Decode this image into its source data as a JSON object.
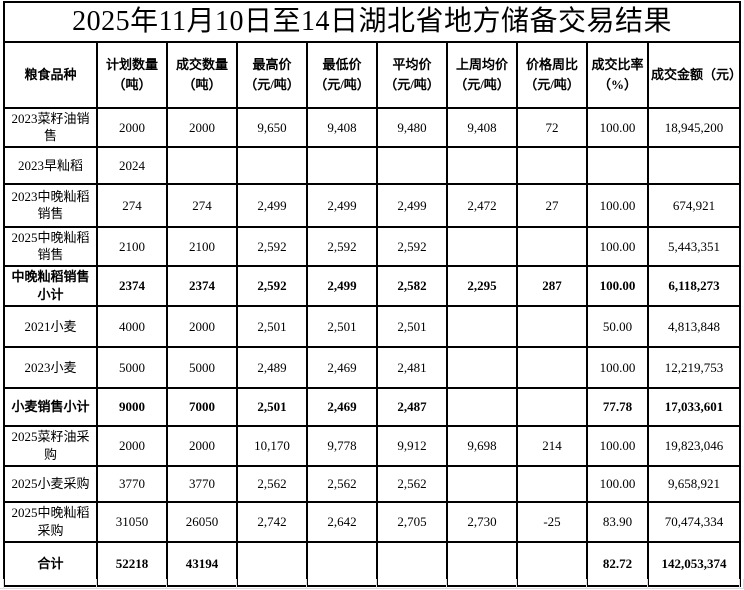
{
  "title": "2025年11月10日至14日湖北省地方储备交易结果",
  "table": {
    "columns": [
      {
        "label": "粮食品种"
      },
      {
        "label": "计划数量\n（吨）"
      },
      {
        "label": "成交数量\n（吨）"
      },
      {
        "label": "最高价\n（元/吨）"
      },
      {
        "label": "最低价\n（元/吨）"
      },
      {
        "label": "平均价\n（元/吨）"
      },
      {
        "label": "上周均价\n（元/吨）"
      },
      {
        "label": "价格周比\n（元/吨）"
      },
      {
        "label": "成交比率\n（%）"
      },
      {
        "label": "成交金额（元）"
      }
    ],
    "rows": [
      {
        "variety": "2023菜籽油销售",
        "bold": false,
        "values": [
          "2000",
          "2000",
          "9,650",
          "9,408",
          "9,480",
          "9,408",
          "72",
          "100.00",
          "18,945,200"
        ]
      },
      {
        "variety": "2023早籼稻",
        "bold": false,
        "values": [
          "2024",
          "",
          "",
          "",
          "",
          "",
          "",
          "",
          ""
        ]
      },
      {
        "variety": "2023中晚籼稻销售",
        "bold": false,
        "values": [
          "274",
          "274",
          "2,499",
          "2,499",
          "2,499",
          "2,472",
          "27",
          "100.00",
          "674,921"
        ]
      },
      {
        "variety": "2025中晚籼稻销售",
        "bold": false,
        "values": [
          "2100",
          "2100",
          "2,592",
          "2,592",
          "2,592",
          "",
          "",
          "100.00",
          "5,443,351"
        ]
      },
      {
        "variety": "中晚籼稻销售小计",
        "bold": true,
        "values": [
          "2374",
          "2374",
          "2,592",
          "2,499",
          "2,582",
          "2,295",
          "287",
          "100.00",
          "6,118,273"
        ]
      },
      {
        "variety": "2021小麦",
        "bold": false,
        "values": [
          "4000",
          "2000",
          "2,501",
          "2,501",
          "2,501",
          "",
          "",
          "50.00",
          "4,813,848"
        ]
      },
      {
        "variety": "2023小麦",
        "bold": false,
        "values": [
          "5000",
          "5000",
          "2,489",
          "2,469",
          "2,481",
          "",
          "",
          "100.00",
          "12,219,753"
        ]
      },
      {
        "variety": "小麦销售小计",
        "bold": true,
        "values": [
          "9000",
          "7000",
          "2,501",
          "2,469",
          "2,487",
          "",
          "",
          "77.78",
          "17,033,601"
        ]
      },
      {
        "variety": "2025菜籽油采购",
        "bold": false,
        "values": [
          "2000",
          "2000",
          "10,170",
          "9,778",
          "9,912",
          "9,698",
          "214",
          "100.00",
          "19,823,046"
        ]
      },
      {
        "variety": "2025小麦采购",
        "bold": false,
        "values": [
          "3770",
          "3770",
          "2,562",
          "2,562",
          "2,562",
          "",
          "",
          "100.00",
          "9,658,921"
        ]
      },
      {
        "variety": "2025中晚籼稻采购",
        "bold": false,
        "values": [
          "31050",
          "26050",
          "2,742",
          "2,642",
          "2,705",
          "2,730",
          "-25",
          "83.90",
          "70,474,334"
        ]
      },
      {
        "variety": "合计",
        "bold": true,
        "values": [
          "52218",
          "43194",
          "",
          "",
          "",
          "",
          "",
          "82.72",
          "142,053,374"
        ]
      }
    ]
  }
}
